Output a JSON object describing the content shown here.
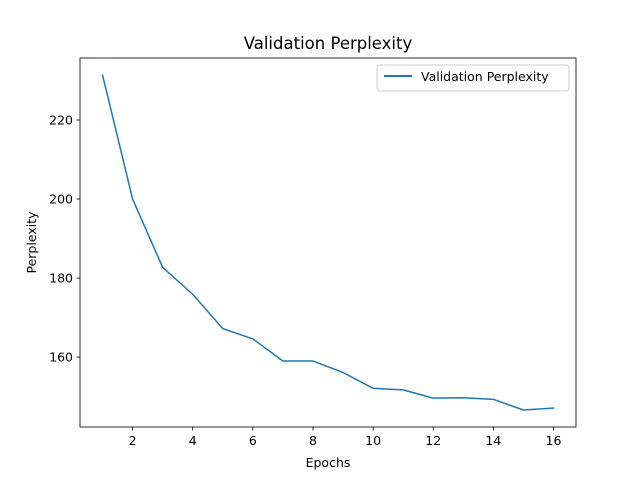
{
  "chart_data": {
    "type": "line",
    "title": "Validation Perplexity",
    "xlabel": "Epochs",
    "ylabel": "Perplexity",
    "x": [
      1,
      2,
      3,
      4,
      5,
      6,
      7,
      8,
      9,
      10,
      11,
      12,
      13,
      14,
      15,
      16
    ],
    "series": [
      {
        "name": "Validation Perplexity",
        "color": "#1f77b4",
        "values": [
          231.4,
          200.0,
          182.7,
          175.9,
          167.2,
          164.6,
          159.0,
          159.0,
          156.1,
          152.1,
          151.7,
          149.6,
          149.7,
          149.3,
          146.6,
          147.1
        ]
      }
    ],
    "xlim": [
      0.25,
      16.75
    ],
    "ylim": [
      142.3,
      235.7
    ],
    "xticks": [
      2,
      4,
      6,
      8,
      10,
      12,
      14,
      16
    ],
    "yticks": [
      160,
      180,
      200,
      220
    ],
    "grid": false,
    "legend_position": "top-right"
  }
}
